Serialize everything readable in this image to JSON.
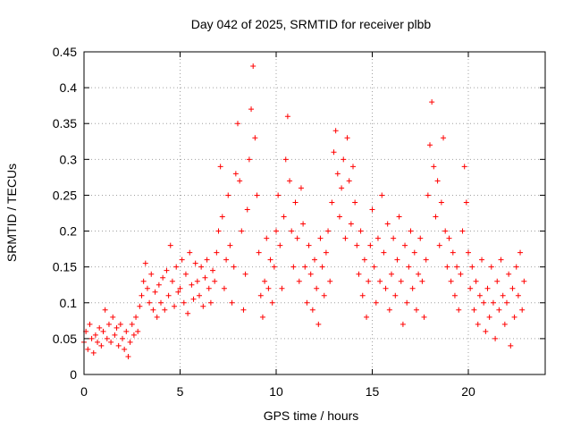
{
  "chart_data": {
    "type": "scatter",
    "title": "Day 042 of 2025, SRMTID for receiver plbb",
    "xlabel": "GPS time / hours",
    "ylabel": "SRMTID / TECUs",
    "xlim": [
      0,
      24
    ],
    "ylim": [
      0,
      0.45
    ],
    "xticks": [
      0,
      5,
      10,
      15,
      20
    ],
    "xtick_labels": [
      "0",
      "5",
      "10",
      "15",
      "20"
    ],
    "yticks": [
      0,
      0.05,
      0.1,
      0.15,
      0.2,
      0.25,
      0.3,
      0.35,
      0.4,
      0.45
    ],
    "ytick_labels": [
      "0",
      "0.05",
      "0.1",
      "0.15",
      "0.2",
      "0.25",
      "0.3",
      "0.35",
      "0.4",
      "0.45"
    ],
    "grid": true,
    "marker": "+",
    "color": "#ff0000",
    "series": [
      {
        "name": "SRMTID",
        "points": [
          [
            0.0,
            0.045
          ],
          [
            0.1,
            0.06
          ],
          [
            0.2,
            0.035
          ],
          [
            0.3,
            0.07
          ],
          [
            0.4,
            0.05
          ],
          [
            0.5,
            0.03
          ],
          [
            0.6,
            0.055
          ],
          [
            0.7,
            0.045
          ],
          [
            0.8,
            0.065
          ],
          [
            0.9,
            0.04
          ],
          [
            1.0,
            0.06
          ],
          [
            1.1,
            0.09
          ],
          [
            1.2,
            0.05
          ],
          [
            1.3,
            0.07
          ],
          [
            1.4,
            0.045
          ],
          [
            1.5,
            0.08
          ],
          [
            1.6,
            0.055
          ],
          [
            1.7,
            0.065
          ],
          [
            1.8,
            0.04
          ],
          [
            1.9,
            0.07
          ],
          [
            2.0,
            0.05
          ],
          [
            2.1,
            0.035
          ],
          [
            2.2,
            0.06
          ],
          [
            2.3,
            0.025
          ],
          [
            2.4,
            0.045
          ],
          [
            2.5,
            0.07
          ],
          [
            2.6,
            0.055
          ],
          [
            2.7,
            0.08
          ],
          [
            2.8,
            0.06
          ],
          [
            2.9,
            0.095
          ],
          [
            3.0,
            0.11
          ],
          [
            3.1,
            0.13
          ],
          [
            3.2,
            0.155
          ],
          [
            3.3,
            0.12
          ],
          [
            3.4,
            0.1
          ],
          [
            3.5,
            0.14
          ],
          [
            3.6,
            0.09
          ],
          [
            3.7,
            0.115
          ],
          [
            3.8,
            0.08
          ],
          [
            3.9,
            0.125
          ],
          [
            4.0,
            0.1
          ],
          [
            4.1,
            0.135
          ],
          [
            4.2,
            0.09
          ],
          [
            4.3,
            0.145
          ],
          [
            4.4,
            0.11
          ],
          [
            4.5,
            0.18
          ],
          [
            4.6,
            0.13
          ],
          [
            4.7,
            0.095
          ],
          [
            4.8,
            0.15
          ],
          [
            4.9,
            0.115
          ],
          [
            5.0,
            0.12
          ],
          [
            5.1,
            0.16
          ],
          [
            5.2,
            0.1
          ],
          [
            5.3,
            0.14
          ],
          [
            5.4,
            0.085
          ],
          [
            5.5,
            0.17
          ],
          [
            5.6,
            0.125
          ],
          [
            5.7,
            0.105
          ],
          [
            5.8,
            0.155
          ],
          [
            5.9,
            0.13
          ],
          [
            6.0,
            0.11
          ],
          [
            6.1,
            0.15
          ],
          [
            6.2,
            0.095
          ],
          [
            6.3,
            0.135
          ],
          [
            6.4,
            0.16
          ],
          [
            6.5,
            0.12
          ],
          [
            6.6,
            0.1
          ],
          [
            6.7,
            0.145
          ],
          [
            6.8,
            0.13
          ],
          [
            6.9,
            0.17
          ],
          [
            7.0,
            0.2
          ],
          [
            7.1,
            0.29
          ],
          [
            7.2,
            0.22
          ],
          [
            7.3,
            0.12
          ],
          [
            7.4,
            0.16
          ],
          [
            7.5,
            0.25
          ],
          [
            7.6,
            0.18
          ],
          [
            7.7,
            0.1
          ],
          [
            7.8,
            0.15
          ],
          [
            7.9,
            0.28
          ],
          [
            8.0,
            0.35
          ],
          [
            8.1,
            0.27
          ],
          [
            8.2,
            0.2
          ],
          [
            8.3,
            0.09
          ],
          [
            8.4,
            0.14
          ],
          [
            8.5,
            0.23
          ],
          [
            8.6,
            0.3
          ],
          [
            8.7,
            0.37
          ],
          [
            8.8,
            0.43
          ],
          [
            8.9,
            0.33
          ],
          [
            9.0,
            0.25
          ],
          [
            9.1,
            0.17
          ],
          [
            9.2,
            0.11
          ],
          [
            9.3,
            0.08
          ],
          [
            9.4,
            0.13
          ],
          [
            9.5,
            0.19
          ],
          [
            9.6,
            0.12
          ],
          [
            9.7,
            0.16
          ],
          [
            9.8,
            0.1
          ],
          [
            9.9,
            0.15
          ],
          [
            10.0,
            0.2
          ],
          [
            10.1,
            0.25
          ],
          [
            10.2,
            0.18
          ],
          [
            10.3,
            0.12
          ],
          [
            10.4,
            0.22
          ],
          [
            10.5,
            0.3
          ],
          [
            10.6,
            0.36
          ],
          [
            10.7,
            0.27
          ],
          [
            10.8,
            0.2
          ],
          [
            10.9,
            0.15
          ],
          [
            11.0,
            0.24
          ],
          [
            11.1,
            0.19
          ],
          [
            11.2,
            0.13
          ],
          [
            11.3,
            0.26
          ],
          [
            11.4,
            0.21
          ],
          [
            11.5,
            0.15
          ],
          [
            11.6,
            0.1
          ],
          [
            11.7,
            0.18
          ],
          [
            11.8,
            0.14
          ],
          [
            11.9,
            0.09
          ],
          [
            12.0,
            0.16
          ],
          [
            12.1,
            0.12
          ],
          [
            12.2,
            0.07
          ],
          [
            12.3,
            0.19
          ],
          [
            12.4,
            0.15
          ],
          [
            12.5,
            0.11
          ],
          [
            12.6,
            0.17
          ],
          [
            12.7,
            0.2
          ],
          [
            12.8,
            0.13
          ],
          [
            12.9,
            0.24
          ],
          [
            13.0,
            0.31
          ],
          [
            13.1,
            0.34
          ],
          [
            13.2,
            0.28
          ],
          [
            13.3,
            0.22
          ],
          [
            13.4,
            0.26
          ],
          [
            13.5,
            0.3
          ],
          [
            13.6,
            0.19
          ],
          [
            13.7,
            0.33
          ],
          [
            13.8,
            0.27
          ],
          [
            13.9,
            0.21
          ],
          [
            14.0,
            0.29
          ],
          [
            14.1,
            0.24
          ],
          [
            14.2,
            0.18
          ],
          [
            14.3,
            0.14
          ],
          [
            14.4,
            0.2
          ],
          [
            14.5,
            0.11
          ],
          [
            14.6,
            0.16
          ],
          [
            14.7,
            0.08
          ],
          [
            14.8,
            0.13
          ],
          [
            14.9,
            0.18
          ],
          [
            15.0,
            0.23
          ],
          [
            15.1,
            0.15
          ],
          [
            15.2,
            0.1
          ],
          [
            15.3,
            0.19
          ],
          [
            15.4,
            0.13
          ],
          [
            15.5,
            0.25
          ],
          [
            15.6,
            0.17
          ],
          [
            15.7,
            0.12
          ],
          [
            15.8,
            0.21
          ],
          [
            15.9,
            0.09
          ],
          [
            16.0,
            0.14
          ],
          [
            16.1,
            0.19
          ],
          [
            16.2,
            0.11
          ],
          [
            16.3,
            0.16
          ],
          [
            16.4,
            0.22
          ],
          [
            16.5,
            0.13
          ],
          [
            16.6,
            0.07
          ],
          [
            16.7,
            0.18
          ],
          [
            16.8,
            0.1
          ],
          [
            16.9,
            0.15
          ],
          [
            17.0,
            0.2
          ],
          [
            17.1,
            0.12
          ],
          [
            17.2,
            0.17
          ],
          [
            17.3,
            0.09
          ],
          [
            17.4,
            0.14
          ],
          [
            17.5,
            0.19
          ],
          [
            17.6,
            0.13
          ],
          [
            17.7,
            0.08
          ],
          [
            17.8,
            0.16
          ],
          [
            17.9,
            0.25
          ],
          [
            18.0,
            0.32
          ],
          [
            18.1,
            0.38
          ],
          [
            18.2,
            0.29
          ],
          [
            18.3,
            0.22
          ],
          [
            18.4,
            0.27
          ],
          [
            18.5,
            0.18
          ],
          [
            18.6,
            0.24
          ],
          [
            18.7,
            0.33
          ],
          [
            18.8,
            0.2
          ],
          [
            18.9,
            0.15
          ],
          [
            19.0,
            0.19
          ],
          [
            19.1,
            0.13
          ],
          [
            19.2,
            0.17
          ],
          [
            19.3,
            0.11
          ],
          [
            19.4,
            0.15
          ],
          [
            19.5,
            0.09
          ],
          [
            19.6,
            0.14
          ],
          [
            19.7,
            0.2
          ],
          [
            19.8,
            0.29
          ],
          [
            19.9,
            0.24
          ],
          [
            20.0,
            0.17
          ],
          [
            20.1,
            0.12
          ],
          [
            20.2,
            0.15
          ],
          [
            20.3,
            0.09
          ],
          [
            20.4,
            0.13
          ],
          [
            20.5,
            0.07
          ],
          [
            20.6,
            0.11
          ],
          [
            20.7,
            0.16
          ],
          [
            20.8,
            0.1
          ],
          [
            20.9,
            0.06
          ],
          [
            21.0,
            0.12
          ],
          [
            21.1,
            0.08
          ],
          [
            21.2,
            0.15
          ],
          [
            21.3,
            0.1
          ],
          [
            21.4,
            0.05
          ],
          [
            21.5,
            0.13
          ],
          [
            21.6,
            0.09
          ],
          [
            21.7,
            0.16
          ],
          [
            21.8,
            0.11
          ],
          [
            21.9,
            0.07
          ],
          [
            22.0,
            0.1
          ],
          [
            22.1,
            0.14
          ],
          [
            22.2,
            0.04
          ],
          [
            22.3,
            0.12
          ],
          [
            22.4,
            0.08
          ],
          [
            22.5,
            0.15
          ],
          [
            22.6,
            0.11
          ],
          [
            22.7,
            0.17
          ],
          [
            22.8,
            0.09
          ],
          [
            22.9,
            0.13
          ]
        ]
      }
    ]
  }
}
